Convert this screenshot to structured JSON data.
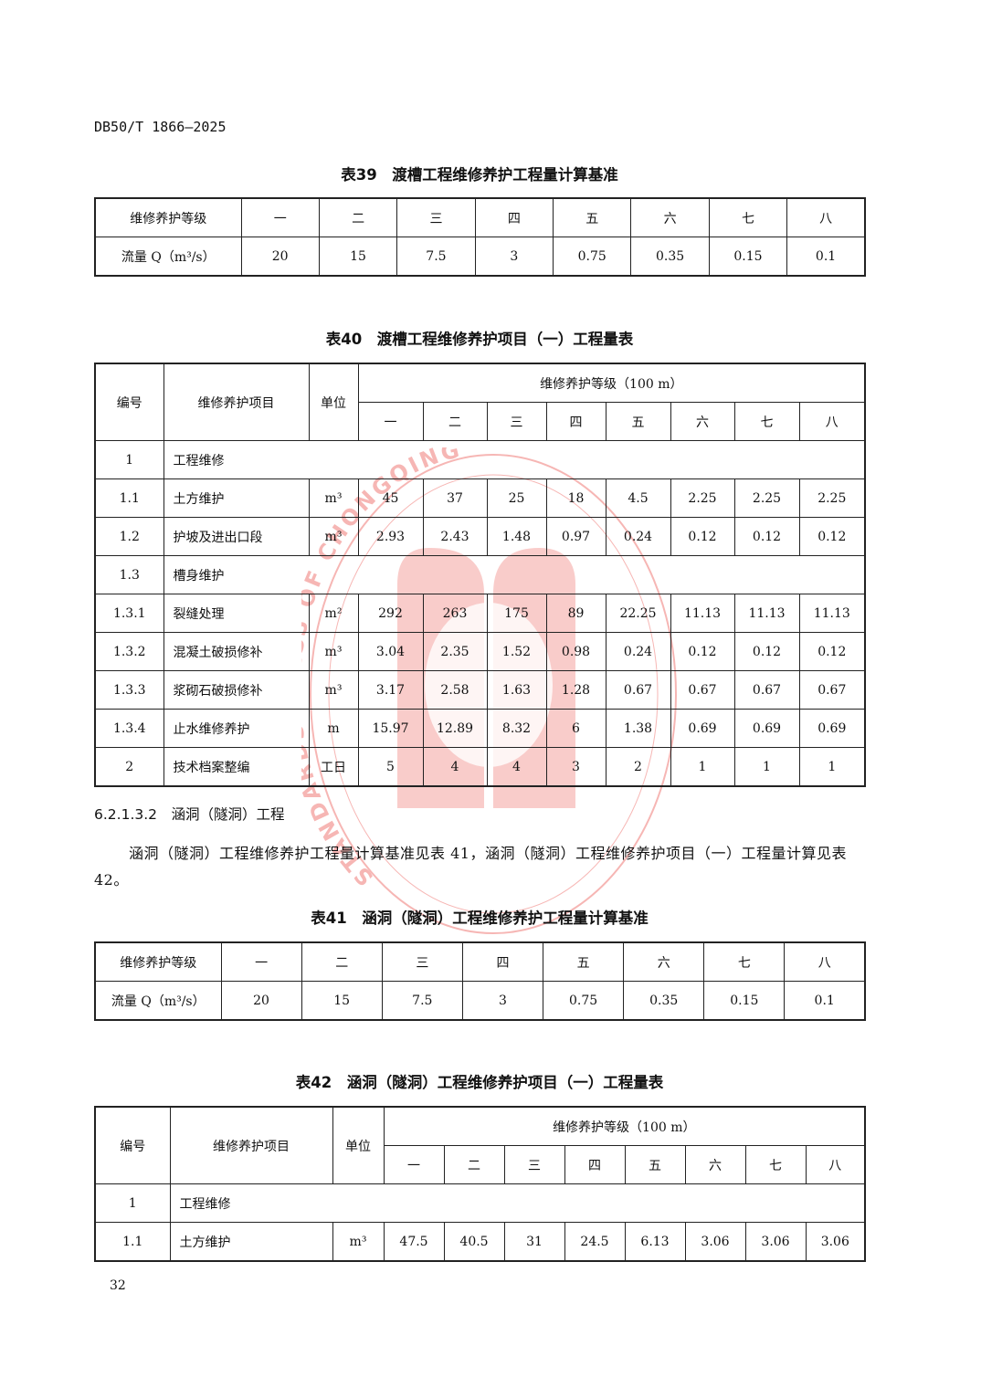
{
  "header": {
    "doc_id": "DB50/T 1866—2025"
  },
  "watermark": {
    "text": "STANDARDS PRESS OF CHONGQING",
    "color": "#e8302a"
  },
  "table39": {
    "caption": "表39　渡槽工程维修养护工程量计算基准",
    "row1_label": "维修养护等级",
    "grades": [
      "一",
      "二",
      "三",
      "四",
      "五",
      "六",
      "七",
      "八"
    ],
    "row2_label": "流量 Q（m³/s）",
    "values": [
      "20",
      "15",
      "7.5",
      "3",
      "0.75",
      "0.35",
      "0.15",
      "0.1"
    ]
  },
  "table40": {
    "caption": "表40　渡槽工程维修养护项目（一）工程量表",
    "headers": {
      "no": "编号",
      "item": "维修养护项目",
      "unit": "单位",
      "grade_group": "维修养护等级（100 m）"
    },
    "grades": [
      "一",
      "二",
      "三",
      "四",
      "五",
      "六",
      "七",
      "八"
    ],
    "rows": [
      {
        "no": "1",
        "item": "工程维修",
        "unit": "",
        "values": []
      },
      {
        "no": "1.1",
        "item": "土方维护",
        "unit": "m³",
        "values": [
          "45",
          "37",
          "25",
          "18",
          "4.5",
          "2.25",
          "2.25",
          "2.25"
        ]
      },
      {
        "no": "1.2",
        "item": "护坡及进出口段",
        "unit": "m³",
        "values": [
          "2.93",
          "2.43",
          "1.48",
          "0.97",
          "0.24",
          "0.12",
          "0.12",
          "0.12"
        ]
      },
      {
        "no": "1.3",
        "item": "槽身维护",
        "unit": "",
        "values": []
      },
      {
        "no": "1.3.1",
        "item": "裂缝处理",
        "unit": "m²",
        "values": [
          "292",
          "263",
          "175",
          "89",
          "22.25",
          "11.13",
          "11.13",
          "11.13"
        ]
      },
      {
        "no": "1.3.2",
        "item": "混凝土破损修补",
        "unit": "m³",
        "values": [
          "3.04",
          "2.35",
          "1.52",
          "0.98",
          "0.24",
          "0.12",
          "0.12",
          "0.12"
        ]
      },
      {
        "no": "1.3.3",
        "item": "浆砌石破损修补",
        "unit": "m³",
        "values": [
          "3.17",
          "2.58",
          "1.63",
          "1.28",
          "0.67",
          "0.67",
          "0.67",
          "0.67"
        ]
      },
      {
        "no": "1.3.4",
        "item": "止水维修养护",
        "unit": "m",
        "values": [
          "15.97",
          "12.89",
          "8.32",
          "6",
          "1.38",
          "0.69",
          "0.69",
          "0.69"
        ]
      },
      {
        "no": "2",
        "item": "技术档案整编",
        "unit": "工日",
        "values": [
          "5",
          "4",
          "4",
          "3",
          "2",
          "1",
          "1",
          "1"
        ]
      }
    ]
  },
  "section": {
    "heading": "6.2.1.3.2　涵洞（隧洞）工程",
    "paragraph": "涵洞（隧洞）工程维修养护工程量计算基准见表 41，涵洞（隧洞）工程维修养护项目（一）工程量计算见表 42。"
  },
  "table41": {
    "caption": "表41　涵洞（隧洞）工程维修养护工程量计算基准",
    "row1_label": "维修养护等级",
    "grades": [
      "一",
      "二",
      "三",
      "四",
      "五",
      "六",
      "七",
      "八"
    ],
    "row2_label": "流量 Q（m³/s）",
    "values": [
      "20",
      "15",
      "7.5",
      "3",
      "0.75",
      "0.35",
      "0.15",
      "0.1"
    ]
  },
  "table42": {
    "caption": "表42　涵洞（隧洞）工程维修养护项目（一）工程量表",
    "headers": {
      "no": "编号",
      "item": "维修养护项目",
      "unit": "单位",
      "grade_group": "维修养护等级（100 m）"
    },
    "grades": [
      "一",
      "二",
      "三",
      "四",
      "五",
      "六",
      "七",
      "八"
    ],
    "rows": [
      {
        "no": "1",
        "item": "工程维修",
        "unit": "",
        "values": []
      },
      {
        "no": "1.1",
        "item": "土方维护",
        "unit": "m³",
        "values": [
          "47.5",
          "40.5",
          "31",
          "24.5",
          "6.13",
          "3.06",
          "3.06",
          "3.06"
        ]
      }
    ]
  },
  "footer": {
    "page_number": "32"
  }
}
